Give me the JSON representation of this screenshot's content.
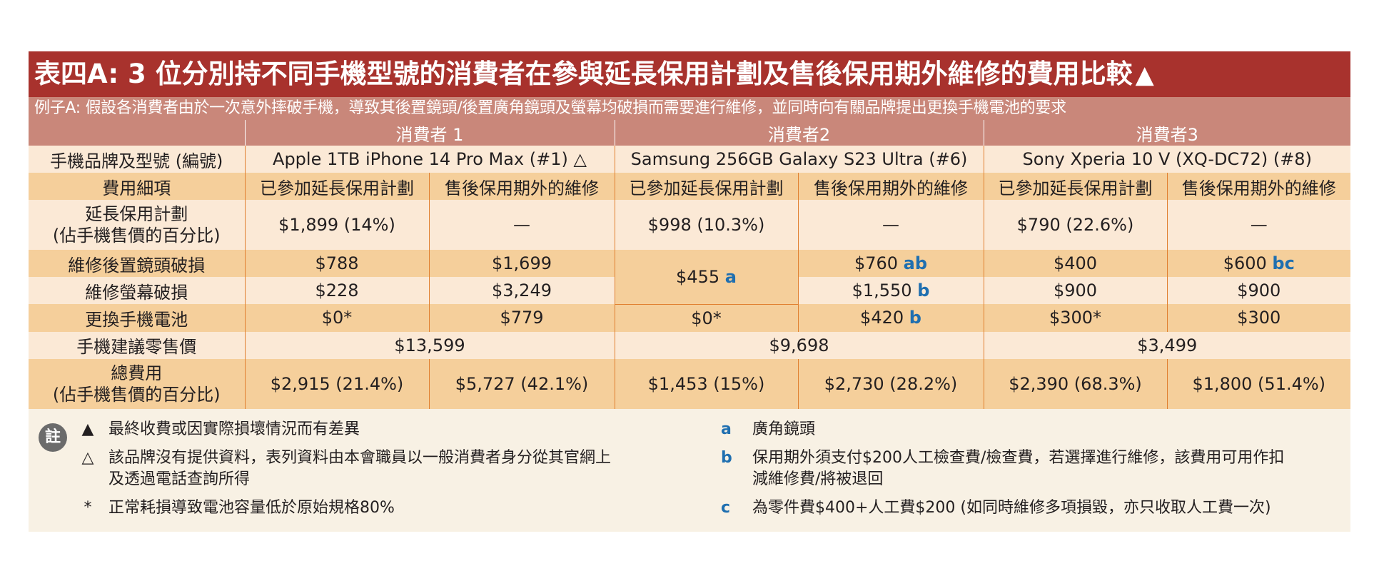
{
  "title": "表四A: 3 位分別持不同手機型號的消費者在參與延長保用計劃及售後保用期外維修的費用比較",
  "title_mark": "▲",
  "subtitle": "例子A: 假設各消費者由於一次意外摔破手機，導致其後置鏡頭/後置廣角鏡頭及螢幕均破損而需要進行維修，並同時向有關品牌提出更換手機電池的要求",
  "consumers": [
    "消費者 1",
    "消費者2",
    "消費者3"
  ],
  "row_labels": {
    "model": "手機品牌及型號 (編號)",
    "detail": "費用細項",
    "ext_line1": "延長保用計劃",
    "ext_line2": "(佔手機售價的百分比)",
    "lens": "維修後置鏡頭破損",
    "screen": "維修螢幕破損",
    "battery": "更換手機電池",
    "rrp": "手機建議零售價",
    "total_line1": "總費用",
    "total_line2": "(佔手機售價的百分比)"
  },
  "models": [
    "Apple 1TB iPhone 14 Pro Max (#1) △",
    "Samsung 256GB Galaxy S23 Ultra (#6)",
    "Sony Xperia 10 V (XQ-DC72) (#8)"
  ],
  "col_with_plan": "已參加延長保用計劃",
  "col_out_warranty": "售後保用期外的維修",
  "extended_plan": [
    "$1,899 (14%)",
    "—",
    "$998 (10.3%)",
    "—",
    "$790 (22.6%)",
    "—"
  ],
  "lens_repair": {
    "c1_plan": "$788",
    "c1_out": "$1,699",
    "c2_plan_merged": "$455",
    "c2_plan_merged_tag": "a",
    "c2_out": "$760",
    "c2_out_tag": "ab",
    "c3_plan": "$400",
    "c3_out": "$600",
    "c3_out_tag": "bc"
  },
  "screen_repair": {
    "c1_plan": "$228",
    "c1_out": "$3,249",
    "c2_out": "$1,550",
    "c2_out_tag": "b",
    "c3_plan": "$900",
    "c3_out": "$900"
  },
  "battery": {
    "c1_plan": "$0*",
    "c1_out": "$779",
    "c2_plan": "$0*",
    "c2_out": "$420",
    "c2_out_tag": "b",
    "c3_plan": "$300*",
    "c3_out": "$300"
  },
  "rrp": [
    "$13,599",
    "$9,698",
    "$3,499"
  ],
  "total": [
    "$2,915 (21.4%)",
    "$5,727 (42.1%)",
    "$1,453 (15%)",
    "$2,730 (28.2%)",
    "$2,390 (68.3%)",
    "$1,800 (51.4%)"
  ],
  "notes": {
    "badge": "註",
    "left": [
      {
        "symbol": "▲",
        "text": "最終收費或因實際損壞情況而有差異"
      },
      {
        "symbol": "△",
        "text": "該品牌沒有提供資料，表列資料由本會職員以一般消費者身分從其官網上",
        "text2": "及透過電話查詢所得"
      },
      {
        "symbol": "*",
        "text": "正常耗損導致電池容量低於原始規格80%"
      }
    ],
    "right": [
      {
        "key": "a",
        "text": "廣角鏡頭"
      },
      {
        "key": "b",
        "text": "保用期外須支付$200人工檢查費/檢查費，若選擇進行維修，該費用可用作扣",
        "text2": "減維修費/將被退回"
      },
      {
        "key": "c",
        "text": "為零件費$400+人工費$200 (如同時維修多項損毀，亦只收取人工費一次)"
      }
    ]
  }
}
